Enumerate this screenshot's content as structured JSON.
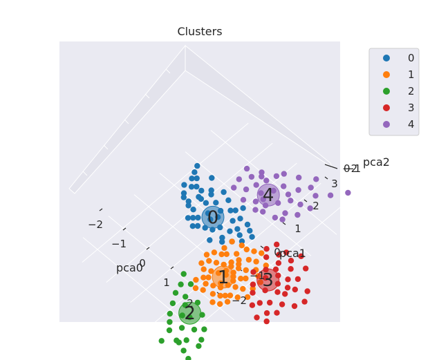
{
  "chart_data": {
    "type": "scatter",
    "title": "Clusters",
    "axes": {
      "x": {
        "label": "pca0",
        "ticks": [
          "−2",
          "−1",
          "0",
          "1",
          "2"
        ]
      },
      "y": {
        "label": "pca1",
        "ticks": [
          "−2",
          "−1",
          "0",
          "1",
          "2",
          "3"
        ]
      },
      "z": {
        "label": "pca2",
        "ticks": [
          "−2",
          "0",
          "−1"
        ]
      }
    },
    "legend": {
      "position": "right",
      "entries": [
        "0",
        "1",
        "2",
        "3",
        "4"
      ]
    },
    "colors": [
      "#1f77b4",
      "#ff7f0e",
      "#2ca02c",
      "#d62728",
      "#9467bd"
    ],
    "pane_color": "#eaeaf2",
    "grid": true,
    "centroid_labels": [
      "0",
      "1",
      "2",
      "3",
      "4"
    ],
    "series": [
      {
        "name": "0",
        "centroid": [
          -0.4,
          1.0
        ],
        "points": [
          [
            -2.0,
            1.9
          ],
          [
            -1.9,
            1.7
          ],
          [
            -1.8,
            1.5
          ],
          [
            -1.7,
            1.6
          ],
          [
            -1.6,
            1.3
          ],
          [
            -1.5,
            1.4
          ],
          [
            -1.4,
            1.9
          ],
          [
            -1.3,
            1.4
          ],
          [
            -1.2,
            1.2
          ],
          [
            -1.1,
            1.6
          ],
          [
            -1.0,
            1.5
          ],
          [
            -0.9,
            1.2
          ],
          [
            -0.8,
            1.8
          ],
          [
            -0.7,
            1.4
          ],
          [
            -0.6,
            1.0
          ],
          [
            -0.5,
            1.7
          ],
          [
            -0.4,
            1.3
          ],
          [
            -0.3,
            1.1
          ],
          [
            -0.2,
            1.5
          ],
          [
            -0.1,
            1.6
          ],
          [
            0.0,
            1.8
          ],
          [
            0.1,
            1.3
          ],
          [
            0.2,
            1.5
          ],
          [
            0.3,
            1.0
          ],
          [
            0.4,
            1.2
          ],
          [
            -1.6,
            1.0
          ],
          [
            -1.3,
            0.9
          ],
          [
            -1.0,
            0.8
          ],
          [
            -0.7,
            0.7
          ],
          [
            -0.4,
            0.9
          ],
          [
            -0.9,
            0.5
          ],
          [
            -0.6,
            0.4
          ],
          [
            -0.3,
            0.6
          ],
          [
            0.0,
            0.9
          ],
          [
            0.3,
            0.7
          ],
          [
            0.5,
            1.5
          ],
          [
            0.6,
            1.1
          ],
          [
            0.7,
            1.4
          ],
          [
            0.8,
            1.0
          ],
          [
            0.9,
            1.3
          ],
          [
            -1.8,
            1.2
          ],
          [
            -1.5,
            0.9
          ],
          [
            -1.2,
            0.8
          ],
          [
            -0.8,
            0.6
          ],
          [
            -0.5,
            0.5
          ],
          [
            0.1,
            0.4
          ],
          [
            0.4,
            0.6
          ],
          [
            -0.1,
            0.7
          ],
          [
            -1.1,
            1.2
          ],
          [
            0.6,
            0.8
          ]
        ]
      },
      {
        "name": "1",
        "centroid": [
          1.3,
          -0.2
        ],
        "points": [
          [
            0.5,
            0.2
          ],
          [
            0.6,
            -0.1
          ],
          [
            0.7,
            0.3
          ],
          [
            0.8,
            0.0
          ],
          [
            0.9,
            -0.3
          ],
          [
            1.0,
            0.1
          ],
          [
            1.1,
            -0.2
          ],
          [
            1.2,
            0.2
          ],
          [
            1.3,
            -0.1
          ],
          [
            1.4,
            -0.4
          ],
          [
            1.5,
            0.0
          ],
          [
            1.6,
            -0.3
          ],
          [
            1.7,
            0.1
          ],
          [
            1.8,
            -0.2
          ],
          [
            1.9,
            -0.5
          ],
          [
            0.6,
            0.5
          ],
          [
            0.8,
            0.4
          ],
          [
            1.0,
            0.6
          ],
          [
            1.2,
            0.5
          ],
          [
            1.4,
            0.3
          ],
          [
            1.6,
            0.4
          ],
          [
            1.8,
            0.2
          ],
          [
            2.0,
            -0.1
          ],
          [
            2.1,
            0.2
          ],
          [
            0.9,
            -0.6
          ],
          [
            1.1,
            -0.7
          ],
          [
            1.3,
            -0.6
          ],
          [
            1.5,
            -0.8
          ],
          [
            1.7,
            -0.7
          ],
          [
            1.9,
            -0.9
          ],
          [
            0.7,
            -0.4
          ],
          [
            1.0,
            -0.5
          ],
          [
            1.2,
            -0.9
          ],
          [
            1.4,
            0.7
          ],
          [
            1.6,
            0.8
          ],
          [
            1.8,
            0.6
          ],
          [
            2.0,
            0.5
          ],
          [
            2.2,
            0.4
          ],
          [
            0.4,
            0.0
          ],
          [
            0.5,
            -0.3
          ],
          [
            1.1,
            0.9
          ],
          [
            1.3,
            1.0
          ],
          [
            1.5,
            1.1
          ],
          [
            2.1,
            -0.4
          ],
          [
            2.3,
            -0.2
          ],
          [
            0.8,
            -0.8
          ],
          [
            1.0,
            -1.0
          ],
          [
            1.2,
            0.0
          ],
          [
            1.4,
            0.1
          ],
          [
            1.6,
            -0.1
          ],
          [
            1.8,
            -0.6
          ],
          [
            2.0,
            -0.7
          ],
          [
            0.6,
            0.8
          ],
          [
            0.9,
            0.9
          ],
          [
            1.7,
            -1.0
          ],
          [
            1.9,
            0.9
          ],
          [
            2.2,
            0.1
          ],
          [
            1.3,
            0.4
          ],
          [
            1.5,
            -0.5
          ],
          [
            1.1,
            0.3
          ]
        ]
      },
      {
        "name": "2",
        "centroid": [
          1.5,
          -1.7
        ],
        "points": [
          [
            0.4,
            -0.9
          ],
          [
            0.6,
            -1.2
          ],
          [
            0.8,
            -1.0
          ],
          [
            1.0,
            -1.4
          ],
          [
            1.2,
            -1.6
          ],
          [
            1.4,
            -1.3
          ],
          [
            1.6,
            -1.8
          ],
          [
            1.8,
            -1.5
          ],
          [
            2.0,
            -2.0
          ],
          [
            2.2,
            -1.8
          ],
          [
            0.9,
            -1.8
          ],
          [
            1.1,
            -2.1
          ],
          [
            1.3,
            -2.3
          ],
          [
            1.5,
            -2.5
          ],
          [
            1.7,
            -2.2
          ],
          [
            1.9,
            -2.6
          ],
          [
            2.1,
            -2.4
          ],
          [
            2.3,
            -2.7
          ],
          [
            2.5,
            -2.3
          ],
          [
            2.6,
            -2.8
          ],
          [
            0.7,
            -1.5
          ],
          [
            1.4,
            -1.9
          ],
          [
            2.4,
            -2.1
          ],
          [
            1.6,
            -2.9
          ],
          [
            2.0,
            -2.6
          ]
        ]
      },
      {
        "name": "3",
        "centroid": [
          2.3,
          0.6
        ],
        "points": [
          [
            1.5,
            1.3
          ],
          [
            1.7,
            1.1
          ],
          [
            1.9,
            1.4
          ],
          [
            2.1,
            1.2
          ],
          [
            2.3,
            1.5
          ],
          [
            2.5,
            1.3
          ],
          [
            2.7,
            1.0
          ],
          [
            2.9,
            1.2
          ],
          [
            3.1,
            0.9
          ],
          [
            2.0,
            0.8
          ],
          [
            2.2,
            0.6
          ],
          [
            2.4,
            0.9
          ],
          [
            2.6,
            0.7
          ],
          [
            2.8,
            0.5
          ],
          [
            3.0,
            0.6
          ],
          [
            3.2,
            0.3
          ],
          [
            2.1,
            0.2
          ],
          [
            2.3,
            0.0
          ],
          [
            2.5,
            0.3
          ],
          [
            2.7,
            -0.1
          ],
          [
            2.9,
            0.1
          ],
          [
            3.1,
            -0.2
          ],
          [
            3.3,
            0.0
          ],
          [
            1.8,
            0.5
          ],
          [
            3.4,
            1.1
          ],
          [
            3.5,
            0.5
          ],
          [
            1.6,
            1.6
          ],
          [
            2.8,
            1.6
          ],
          [
            3.0,
            -0.5
          ],
          [
            2.6,
            -0.3
          ],
          [
            2.4,
            1.8
          ],
          [
            3.6,
            0.8
          ],
          [
            2.2,
            1.0
          ],
          [
            3.3,
            -0.4
          ],
          [
            2.9,
            0.8
          ],
          [
            2.0,
            1.6
          ]
        ]
      },
      {
        "name": "4",
        "centroid": [
          0.2,
          2.6
        ],
        "points": [
          [
            -0.8,
            2.4
          ],
          [
            -0.6,
            2.7
          ],
          [
            -0.4,
            2.3
          ],
          [
            -0.2,
            2.9
          ],
          [
            0.0,
            2.5
          ],
          [
            0.2,
            2.8
          ],
          [
            0.4,
            2.3
          ],
          [
            0.6,
            2.6
          ],
          [
            0.8,
            2.9
          ],
          [
            1.0,
            2.5
          ],
          [
            -0.5,
            3.0
          ],
          [
            -0.3,
            2.6
          ],
          [
            -0.1,
            3.2
          ],
          [
            0.1,
            2.2
          ],
          [
            0.3,
            3.1
          ],
          [
            0.5,
            2.1
          ],
          [
            0.7,
            3.3
          ],
          [
            0.9,
            2.2
          ],
          [
            1.1,
            3.0
          ],
          [
            1.3,
            2.7
          ],
          [
            -0.7,
            2.1
          ],
          [
            -0.9,
            2.8
          ],
          [
            0.0,
            3.4
          ],
          [
            0.4,
            3.6
          ],
          [
            0.8,
            3.9
          ],
          [
            1.2,
            3.5
          ],
          [
            1.5,
            3.8
          ],
          [
            1.8,
            4.2
          ],
          [
            -0.2,
            2.0
          ],
          [
            0.6,
            3.0
          ],
          [
            0.2,
            2.4
          ],
          [
            1.4,
            3.1
          ],
          [
            0.9,
            3.6
          ],
          [
            -0.4,
            2.9
          ],
          [
            0.3,
            2.0
          ],
          [
            1.1,
            2.3
          ]
        ]
      }
    ]
  }
}
